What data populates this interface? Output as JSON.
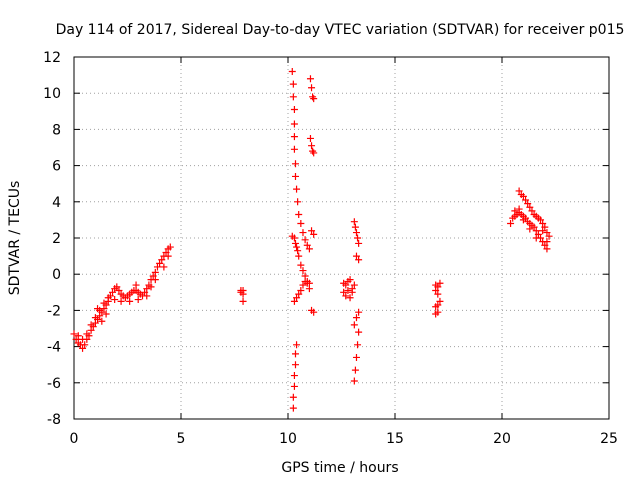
{
  "chart_data": {
    "type": "scatter",
    "title": "Day 114 of 2017, Sidereal Day-to-day VTEC variation (SDTVAR) for receiver p015",
    "xlabel": "GPS time / hours",
    "ylabel": "SDTVAR / TECUs",
    "xlim": [
      0,
      25
    ],
    "ylim": [
      -8,
      12
    ],
    "xticks": [
      0,
      5,
      10,
      15,
      20,
      25
    ],
    "yticks": [
      -8,
      -6,
      -4,
      -2,
      0,
      2,
      4,
      6,
      8,
      10,
      12
    ],
    "grid": true,
    "marker": "+",
    "color": "#ff0000",
    "series": [
      {
        "points": [
          [
            0.0,
            -3.3
          ],
          [
            0.1,
            -3.6
          ],
          [
            0.2,
            -3.8
          ],
          [
            0.3,
            -3.9
          ],
          [
            0.4,
            -4.1
          ],
          [
            0.5,
            -3.9
          ],
          [
            0.6,
            -3.6
          ],
          [
            0.7,
            -3.4
          ],
          [
            0.8,
            -3.1
          ],
          [
            0.9,
            -2.9
          ],
          [
            1.0,
            -2.7
          ],
          [
            1.1,
            -2.5
          ],
          [
            1.2,
            -2.3
          ],
          [
            1.3,
            -2.1
          ],
          [
            1.4,
            -1.9
          ],
          [
            1.5,
            -1.7
          ],
          [
            1.6,
            -1.5
          ],
          [
            1.7,
            -1.2
          ],
          [
            1.8,
            -1.0
          ],
          [
            1.9,
            -0.8
          ],
          [
            2.0,
            -0.7
          ],
          [
            2.1,
            -0.9
          ],
          [
            2.2,
            -1.1
          ],
          [
            2.3,
            -1.2
          ],
          [
            2.4,
            -1.3
          ],
          [
            2.5,
            -1.2
          ],
          [
            2.6,
            -1.1
          ],
          [
            2.7,
            -1.0
          ],
          [
            2.8,
            -0.9
          ],
          [
            2.9,
            -0.9
          ],
          [
            3.0,
            -1.0
          ],
          [
            3.1,
            -1.1
          ],
          [
            3.2,
            -1.2
          ],
          [
            3.3,
            -1.0
          ],
          [
            3.4,
            -0.8
          ],
          [
            3.5,
            -0.6
          ],
          [
            3.6,
            -0.3
          ],
          [
            3.7,
            -0.1
          ],
          [
            3.8,
            0.1
          ],
          [
            3.9,
            0.4
          ],
          [
            4.0,
            0.6
          ],
          [
            4.1,
            0.8
          ],
          [
            4.2,
            1.0
          ],
          [
            4.3,
            1.2
          ],
          [
            4.4,
            1.4
          ],
          [
            4.5,
            1.5
          ],
          [
            0.2,
            -3.4
          ],
          [
            0.4,
            -3.6
          ],
          [
            0.6,
            -3.3
          ],
          [
            0.8,
            -2.8
          ],
          [
            1.0,
            -2.4
          ],
          [
            1.2,
            -2.0
          ],
          [
            1.4,
            -1.6
          ],
          [
            1.6,
            -1.3
          ],
          [
            1.3,
            -2.6
          ],
          [
            1.5,
            -2.2
          ],
          [
            2.2,
            -1.5
          ],
          [
            2.6,
            -1.5
          ],
          [
            3.0,
            -1.4
          ],
          [
            3.4,
            -1.2
          ],
          [
            3.8,
            -0.3
          ],
          [
            4.2,
            0.4
          ],
          [
            4.4,
            1.0
          ],
          [
            1.1,
            -1.9
          ],
          [
            1.9,
            -1.4
          ],
          [
            2.9,
            -0.6
          ],
          [
            3.6,
            -0.7
          ]
        ]
      },
      {
        "points": [
          [
            7.8,
            -0.9
          ],
          [
            7.8,
            -1.0
          ],
          [
            7.9,
            -0.9
          ],
          [
            7.9,
            -1.1
          ],
          [
            7.9,
            -1.5
          ]
        ]
      },
      {
        "points": [
          [
            10.2,
            11.2
          ],
          [
            10.25,
            10.5
          ],
          [
            10.25,
            9.8
          ],
          [
            10.3,
            9.1
          ],
          [
            10.3,
            8.3
          ],
          [
            10.3,
            7.6
          ],
          [
            10.3,
            6.9
          ],
          [
            10.35,
            6.1
          ],
          [
            10.35,
            5.4
          ],
          [
            10.4,
            4.7
          ],
          [
            10.45,
            4.0
          ],
          [
            10.5,
            3.3
          ],
          [
            10.6,
            2.8
          ],
          [
            10.7,
            2.3
          ],
          [
            10.8,
            1.9
          ],
          [
            10.9,
            1.6
          ],
          [
            11.0,
            1.4
          ],
          [
            10.2,
            2.1
          ],
          [
            10.3,
            2.0
          ],
          [
            10.35,
            1.7
          ],
          [
            10.4,
            1.5
          ],
          [
            10.45,
            1.3
          ],
          [
            10.5,
            1.0
          ],
          [
            10.6,
            0.5
          ],
          [
            10.7,
            0.2
          ],
          [
            10.8,
            -0.1
          ],
          [
            10.9,
            -0.4
          ],
          [
            11.0,
            -0.5
          ],
          [
            10.3,
            -1.5
          ],
          [
            10.4,
            -1.3
          ],
          [
            10.5,
            -1.1
          ],
          [
            10.6,
            -0.9
          ],
          [
            10.7,
            -0.6
          ],
          [
            10.8,
            -0.4
          ],
          [
            10.9,
            -0.5
          ],
          [
            11.0,
            -0.8
          ],
          [
            11.1,
            -2.0
          ],
          [
            11.2,
            -2.1
          ],
          [
            10.25,
            -7.4
          ],
          [
            10.25,
            -6.8
          ],
          [
            10.3,
            -6.2
          ],
          [
            10.3,
            -5.6
          ],
          [
            10.35,
            -5.0
          ],
          [
            10.35,
            -4.4
          ],
          [
            10.4,
            -3.9
          ],
          [
            11.05,
            10.8
          ],
          [
            11.1,
            10.3
          ],
          [
            11.15,
            9.8
          ],
          [
            11.2,
            9.7
          ],
          [
            11.05,
            7.5
          ],
          [
            11.1,
            7.1
          ],
          [
            11.15,
            6.8
          ],
          [
            11.2,
            6.7
          ],
          [
            11.1,
            2.4
          ],
          [
            11.2,
            2.2
          ]
        ]
      },
      {
        "points": [
          [
            12.6,
            -0.5
          ],
          [
            12.6,
            -1.0
          ],
          [
            12.7,
            -1.2
          ],
          [
            12.7,
            -0.6
          ],
          [
            12.8,
            -0.4
          ],
          [
            12.8,
            -0.9
          ],
          [
            12.9,
            -1.3
          ],
          [
            12.9,
            -0.3
          ],
          [
            13.0,
            -0.8
          ],
          [
            13.0,
            -1.0
          ],
          [
            13.1,
            -0.6
          ],
          [
            13.1,
            2.9
          ],
          [
            13.15,
            2.6
          ],
          [
            13.2,
            2.3
          ],
          [
            13.25,
            2.0
          ],
          [
            13.3,
            1.7
          ],
          [
            13.2,
            1.0
          ],
          [
            13.3,
            0.8
          ],
          [
            13.1,
            -5.9
          ],
          [
            13.15,
            -5.3
          ],
          [
            13.2,
            -4.6
          ],
          [
            13.25,
            -3.9
          ],
          [
            13.3,
            -3.2
          ],
          [
            13.1,
            -2.8
          ],
          [
            13.2,
            -2.4
          ],
          [
            13.3,
            -2.1
          ]
        ]
      },
      {
        "points": [
          [
            16.9,
            -0.6
          ],
          [
            16.9,
            -0.9
          ],
          [
            17.0,
            -0.7
          ],
          [
            17.0,
            -1.1
          ],
          [
            17.1,
            -0.5
          ],
          [
            16.9,
            -1.8
          ],
          [
            17.0,
            -1.7
          ],
          [
            17.0,
            -2.1
          ],
          [
            16.9,
            -2.2
          ],
          [
            17.1,
            -1.5
          ]
        ]
      },
      {
        "points": [
          [
            20.4,
            2.8
          ],
          [
            20.5,
            3.1
          ],
          [
            20.6,
            3.2
          ],
          [
            20.7,
            3.3
          ],
          [
            20.8,
            3.4
          ],
          [
            20.9,
            3.3
          ],
          [
            21.0,
            3.2
          ],
          [
            21.1,
            3.1
          ],
          [
            21.2,
            2.9
          ],
          [
            21.3,
            2.8
          ],
          [
            21.4,
            2.7
          ],
          [
            21.5,
            2.6
          ],
          [
            21.6,
            2.4
          ],
          [
            21.7,
            2.2
          ],
          [
            21.8,
            2.0
          ],
          [
            21.9,
            1.8
          ],
          [
            22.0,
            1.6
          ],
          [
            22.1,
            1.4
          ],
          [
            20.8,
            4.6
          ],
          [
            20.9,
            4.4
          ],
          [
            21.0,
            4.3
          ],
          [
            21.1,
            4.1
          ],
          [
            21.2,
            3.9
          ],
          [
            21.3,
            3.7
          ],
          [
            21.4,
            3.5
          ],
          [
            21.5,
            3.3
          ],
          [
            21.6,
            3.2
          ],
          [
            21.7,
            3.1
          ],
          [
            21.8,
            3.0
          ],
          [
            21.9,
            2.8
          ],
          [
            22.0,
            2.6
          ],
          [
            22.1,
            2.3
          ],
          [
            22.2,
            2.1
          ],
          [
            20.6,
            3.5
          ],
          [
            20.8,
            3.6
          ],
          [
            21.0,
            3.0
          ],
          [
            21.3,
            2.5
          ],
          [
            21.6,
            2.0
          ],
          [
            21.9,
            2.4
          ],
          [
            22.1,
            1.8
          ]
        ]
      }
    ]
  }
}
